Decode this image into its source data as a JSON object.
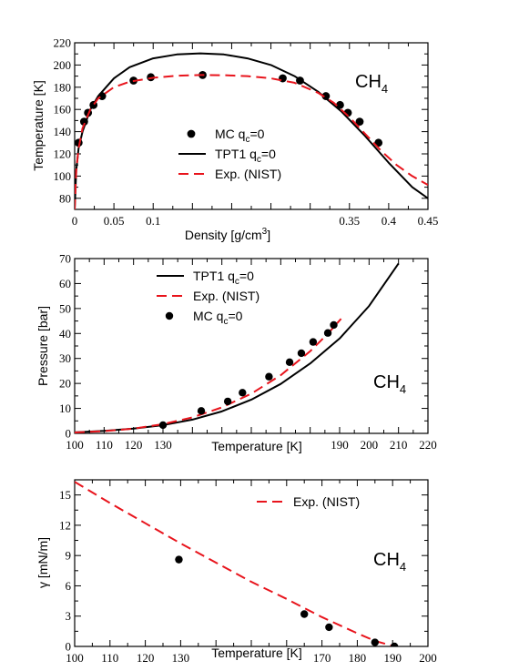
{
  "chart_data": [
    {
      "type": "line",
      "xlabel": "Density [g/cm",
      "xlabel_sup": "3",
      "xlabel_end": "]",
      "ylabel": "Temperature [K]",
      "xlim": [
        0,
        0.45
      ],
      "ylim": [
        70,
        220
      ],
      "xticks": [
        0,
        0.05,
        0.1,
        0.35,
        0.4,
        0.45
      ],
      "xtick_labels": [
        "0",
        "0.05",
        "0.1",
        "0.35",
        "0.4",
        "0.45"
      ],
      "yticks": [
        80,
        100,
        120,
        140,
        160,
        180,
        200,
        220
      ],
      "ytick_labels": [
        "80",
        "100",
        "120",
        "140",
        "160",
        "180",
        "200",
        "220"
      ],
      "species": "CH",
      "species_sub": "4",
      "legend": [
        {
          "label": "MC q",
          "sub": "c",
          "rest": "=0",
          "style": "marker"
        },
        {
          "label": "TPT1 q",
          "sub": "c",
          "rest": "=0",
          "style": "solid"
        },
        {
          "label": "Exp. (NIST)",
          "sub": "",
          "rest": "",
          "style": "dashed"
        }
      ],
      "series": [
        {
          "style": "marker",
          "x": [
            0.005,
            0.012,
            0.017,
            0.024,
            0.035,
            0.075,
            0.097,
            0.163,
            0.265,
            0.287,
            0.32,
            0.338,
            0.348,
            0.363,
            0.387
          ],
          "y": [
            130,
            149,
            157,
            164,
            172,
            186,
            189,
            191,
            188,
            186,
            172,
            164,
            157,
            149,
            130
          ]
        },
        {
          "style": "solid",
          "x": [
            0.0,
            0.002,
            0.005,
            0.01,
            0.02,
            0.03,
            0.05,
            0.07,
            0.1,
            0.13,
            0.16,
            0.19,
            0.22,
            0.25,
            0.28,
            0.31,
            0.34,
            0.37,
            0.4,
            0.43,
            0.45
          ],
          "y": [
            70,
            105,
            125,
            140,
            160,
            172,
            188,
            198,
            206,
            209.5,
            210.5,
            209.5,
            206,
            200,
            190,
            176,
            158,
            136,
            112,
            90,
            80
          ]
        },
        {
          "style": "dashed",
          "x": [
            0.0,
            0.002,
            0.005,
            0.01,
            0.02,
            0.03,
            0.05,
            0.07,
            0.1,
            0.13,
            0.16,
            0.19,
            0.22,
            0.25,
            0.28,
            0.31,
            0.33,
            0.35,
            0.37,
            0.39,
            0.41,
            0.43,
            0.45
          ],
          "y": [
            70,
            105,
            125,
            143,
            160,
            170,
            180,
            185,
            188.5,
            190.3,
            191,
            190.8,
            190,
            188,
            184,
            175,
            166,
            153,
            138,
            123,
            110,
            100,
            92
          ]
        }
      ]
    },
    {
      "type": "line",
      "xlabel": "Temperature [K]",
      "ylabel": "Pressure [bar]",
      "xlim": [
        100,
        220
      ],
      "ylim": [
        0,
        70
      ],
      "xticks": [
        100,
        110,
        120,
        130,
        140,
        150,
        160,
        170,
        180,
        190,
        200,
        210,
        220
      ],
      "xtick_labels": [
        "100",
        "110",
        "120",
        "130",
        "",
        "",
        "",
        "",
        "",
        "190",
        "200",
        "210",
        "220"
      ],
      "yticks": [
        0,
        10,
        20,
        30,
        40,
        50,
        60,
        70
      ],
      "ytick_labels": [
        "0",
        "10",
        "20",
        "30",
        "40",
        "50",
        "60",
        "70"
      ],
      "species": "CH",
      "species_sub": "4",
      "legend": [
        {
          "label": "TPT1 q",
          "sub": "c",
          "rest": "=0",
          "style": "solid"
        },
        {
          "label": "Exp. (NIST)",
          "sub": "",
          "rest": "",
          "style": "dashed"
        },
        {
          "label": "MC q",
          "sub": "c",
          "rest": "=0",
          "style": "marker"
        }
      ],
      "series": [
        {
          "style": "solid",
          "x": [
            100,
            110,
            120,
            130,
            140,
            150,
            160,
            170,
            180,
            190,
            200,
            210
          ],
          "y": [
            0.4,
            1.0,
            1.9,
            3.3,
            5.5,
            8.8,
            13.5,
            19.8,
            28,
            38,
            51,
            68
          ]
        },
        {
          "style": "dashed",
          "x": [
            100,
            110,
            120,
            130,
            140,
            150,
            160,
            170,
            180,
            186,
            190.5
          ],
          "y": [
            0.35,
            0.9,
            1.9,
            3.7,
            6.4,
            10.4,
            15.9,
            23.3,
            32.9,
            39.9,
            45.9
          ]
        },
        {
          "style": "marker",
          "x": [
            130,
            143,
            152,
            157,
            166,
            173,
            177,
            181,
            186,
            188
          ],
          "y": [
            3.3,
            9,
            12.8,
            16.3,
            22.7,
            28.5,
            32.1,
            36.6,
            40.2,
            43.4
          ]
        }
      ]
    },
    {
      "type": "line",
      "xlabel": "Temperature [K]",
      "ylabel": "γ [mN/m]",
      "xlim": [
        100,
        200
      ],
      "ylim": [
        0,
        16.5
      ],
      "xticks": [
        100,
        110,
        120,
        130,
        140,
        150,
        160,
        170,
        180,
        190,
        200
      ],
      "xtick_labels": [
        "100",
        "110",
        "120",
        "130",
        "",
        "",
        "",
        "170",
        "180",
        "190",
        "200"
      ],
      "yticks": [
        0,
        3,
        6,
        9,
        12,
        15
      ],
      "ytick_labels": [
        "0",
        "3",
        "6",
        "9",
        "12",
        "15"
      ],
      "species": "CH",
      "species_sub": "4",
      "legend": [
        {
          "label": "Exp. (NIST)",
          "sub": "",
          "rest": "",
          "style": "dashed"
        }
      ],
      "series": [
        {
          "style": "dashed",
          "x": [
            100,
            110,
            120,
            130,
            140,
            150,
            160,
            170,
            180,
            185,
            190.5
          ],
          "y": [
            16.3,
            14.2,
            12.2,
            10.2,
            8.3,
            6.4,
            4.7,
            2.9,
            1.3,
            0.55,
            0
          ]
        },
        {
          "style": "marker",
          "x": [
            129.5,
            165,
            172,
            185,
            190.5
          ],
          "y": [
            8.6,
            3.2,
            1.9,
            0.4,
            0
          ]
        }
      ]
    }
  ],
  "colors": {
    "tpt1": "#000000",
    "nist": "#e8141c",
    "mc": "#000000",
    "frame": "#000000"
  }
}
